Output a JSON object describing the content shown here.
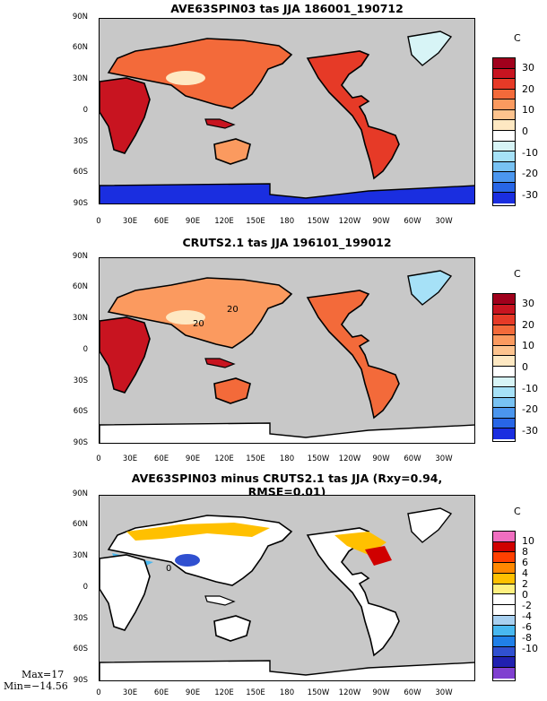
{
  "panels": [
    {
      "title": "AVE63SPIN03 tas JJA 186001_190712",
      "unit": "C",
      "colorbar": {
        "labels": [
          "30",
          "20",
          "10",
          "0",
          "-10",
          "-20",
          "-30"
        ],
        "colors": [
          "#a0001c",
          "#c81420",
          "#e63a27",
          "#f36a3a",
          "#fb9a5f",
          "#fdc38e",
          "#fee8c2",
          "#ffffff",
          "#d7f4f6",
          "#a6e1f7",
          "#78c2f3",
          "#4b96ee",
          "#2866e6",
          "#1a2ee0"
        ]
      }
    },
    {
      "title": "CRUTS2.1 tas JJA 196101_199012",
      "unit": "C",
      "contour_labels": [
        "20",
        "20"
      ],
      "colorbar": {
        "labels": [
          "30",
          "20",
          "10",
          "0",
          "-10",
          "-20",
          "-30"
        ],
        "colors": [
          "#a0001c",
          "#c81420",
          "#e63a27",
          "#f36a3a",
          "#fb9a5f",
          "#fdc38e",
          "#fee8c2",
          "#ffffff",
          "#d7f4f6",
          "#a6e1f7",
          "#78c2f3",
          "#4b96ee",
          "#2866e6",
          "#1a2ee0"
        ]
      }
    },
    {
      "title": "AVE63SPIN03 minus CRUTS2.1 tas JJA (Rxy=0.94, RMSE=0.01)",
      "unit": "C",
      "contour_labels": [
        "0"
      ],
      "colorbar": {
        "labels": [
          "10",
          "8",
          "6",
          "4",
          "2",
          "0",
          "-2",
          "-4",
          "-6",
          "-8",
          "-10"
        ],
        "colors": [
          "#f06ec0",
          "#d00000",
          "#ff4000",
          "#ff8800",
          "#ffc000",
          "#fff080",
          "#ffffff",
          "#ffffff",
          "#a8d0f0",
          "#48b8f0",
          "#2080e8",
          "#3050d0",
          "#2020b0",
          "#8040d0"
        ]
      },
      "stats": {
        "max": "Max=17",
        "min": "Min=−14.56"
      }
    }
  ],
  "axes": {
    "y_ticks": [
      "90N",
      "60N",
      "30N",
      "0",
      "30S",
      "60S",
      "90S"
    ],
    "x_ticks": [
      "0",
      "30E",
      "60E",
      "90E",
      "120E",
      "150E",
      "180",
      "150W",
      "120W",
      "90W",
      "60W",
      "30W"
    ]
  },
  "colors": {
    "ocean": "#c8c8c8",
    "coast": "#000000"
  }
}
